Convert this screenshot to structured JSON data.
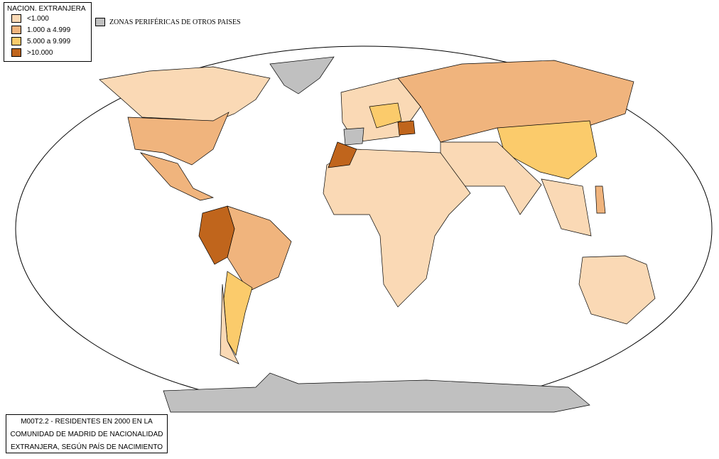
{
  "legend": {
    "title": "NACION. EXTRANJERA",
    "items": [
      {
        "label": "<1.000",
        "color": "#fad9b5"
      },
      {
        "label": "1.000 a 4.999",
        "color": "#f0b47d"
      },
      {
        "label": "5.000 a 9.999",
        "color": "#fbcb6b"
      },
      {
        "label": ">10.000",
        "color": "#c0651c"
      }
    ]
  },
  "other": {
    "label": "ZONAS PERIFÉRICAS DE OTROS PAISES",
    "color": "#c0c0c0"
  },
  "caption": {
    "lines": [
      "M00T2.2 - RESIDENTES EN 2000 EN LA",
      "COMUNIDAD DE MADRID DE NACIONALIDAD",
      "EXTRANJERA, SEGÚN PAÍS DE NACIMIENTO"
    ]
  }
}
